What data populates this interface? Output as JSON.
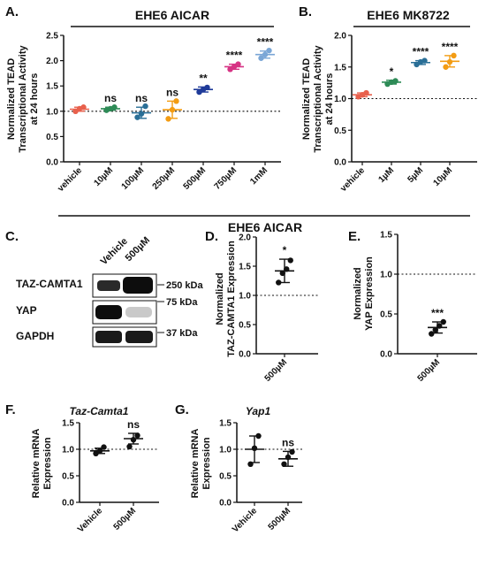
{
  "panels": {
    "A": {
      "letter": "A.",
      "title": "EHE6 AICAR",
      "ylabel": [
        "Normalized TEAD",
        "Transcriptional Activity",
        "at 24 hours"
      ]
    },
    "B": {
      "letter": "B.",
      "title": "EHE6 MK8722",
      "ylabel": [
        "Normalized TEAD",
        "Transcriptional Activity",
        "at 24 hours"
      ]
    },
    "section_title": "EHE6 AICAR",
    "C": {
      "letter": "C.",
      "lanes": [
        "Vehicle",
        "500µM"
      ],
      "rows": [
        "TAZ-CAMTA1",
        "YAP",
        "GAPDH"
      ],
      "markers": [
        "250 kDa",
        "75 kDa",
        "37 kDa"
      ]
    },
    "D": {
      "letter": "D.",
      "ylabel": [
        "Normalized",
        "TAZ-CAMTA1 Expression"
      ]
    },
    "E": {
      "letter": "E.",
      "ylabel": [
        "Normalized",
        "YAP Expression"
      ]
    },
    "F": {
      "letter": "F.",
      "title": "Taz-Camta1",
      "ylabel": [
        "Relative mRNA",
        "Expression"
      ]
    },
    "G": {
      "letter": "G.",
      "title": "Yap1",
      "ylabel": [
        "Relative mRNA",
        "Expression"
      ]
    }
  },
  "chart_data": [
    {
      "id": "A",
      "type": "scatter",
      "title": "EHE6 AICAR",
      "ylim": [
        0,
        2.5
      ],
      "yticks": [
        "0.0",
        "0.5",
        "1.0",
        "1.5",
        "2.0",
        "2.5"
      ],
      "categories": [
        "vehicle",
        "10µM",
        "100µM",
        "250µM",
        "500µM",
        "750µM",
        "1mM"
      ],
      "colors": [
        "#e8604c",
        "#2e8b57",
        "#2a6f97",
        "#f39c12",
        "#1f3b99",
        "#d63384",
        "#7aa6d6"
      ],
      "points": [
        [
          1.0,
          1.05,
          1.08
        ],
        [
          1.02,
          1.05,
          1.08
        ],
        [
          0.88,
          0.95,
          1.1
        ],
        [
          0.85,
          1.03,
          1.2
        ],
        [
          1.38,
          1.43,
          1.47
        ],
        [
          1.83,
          1.88,
          1.93
        ],
        [
          2.05,
          2.12,
          2.2
        ]
      ],
      "means": [
        1.04,
        1.05,
        0.97,
        1.03,
        1.43,
        1.88,
        2.12
      ],
      "sd": [
        0.04,
        0.03,
        0.11,
        0.17,
        0.05,
        0.05,
        0.07
      ],
      "significance": [
        "",
        "ns",
        "ns",
        "ns",
        "**",
        "****",
        "****"
      ],
      "reference_line": 1.0
    },
    {
      "id": "B",
      "type": "scatter",
      "title": "EHE6 MK8722",
      "ylim": [
        0,
        2.0
      ],
      "yticks": [
        "0.0",
        "0.5",
        "1.0",
        "1.5",
        "2.0"
      ],
      "categories": [
        "vehicle",
        "1µM",
        "5µM",
        "10µM"
      ],
      "colors": [
        "#e8604c",
        "#2e8b57",
        "#2a6f97",
        "#f39c12"
      ],
      "points": [
        [
          1.03,
          1.06,
          1.09
        ],
        [
          1.23,
          1.26,
          1.28
        ],
        [
          1.54,
          1.58,
          1.6
        ],
        [
          1.5,
          1.58,
          1.68
        ]
      ],
      "means": [
        1.06,
        1.26,
        1.57,
        1.59
      ],
      "sd": [
        0.03,
        0.03,
        0.03,
        0.09
      ],
      "significance": [
        "",
        "*",
        "****",
        "****"
      ],
      "reference_line": 1.0
    },
    {
      "id": "D",
      "type": "scatter",
      "ylim": [
        0,
        2.0
      ],
      "yticks": [
        "0.0",
        "0.5",
        "1.0",
        "1.5",
        "2.0"
      ],
      "categories": [
        "500µM"
      ],
      "points": [
        [
          1.22,
          1.38,
          1.45,
          1.6
        ]
      ],
      "means": [
        1.42
      ],
      "sd": [
        0.2
      ],
      "significance": [
        "*"
      ],
      "reference_line": 1.0
    },
    {
      "id": "E",
      "type": "scatter",
      "ylim": [
        0,
        1.5
      ],
      "yticks": [
        "0.0",
        "0.5",
        "1.0",
        "1.5"
      ],
      "categories": [
        "500µM"
      ],
      "points": [
        [
          0.25,
          0.3,
          0.35,
          0.4
        ]
      ],
      "means": [
        0.33
      ],
      "sd": [
        0.07
      ],
      "significance": [
        "***"
      ],
      "reference_line": 1.0
    },
    {
      "id": "F",
      "type": "scatter",
      "ylim": [
        0,
        1.5
      ],
      "yticks": [
        "0.0",
        "0.5",
        "1.0",
        "1.5"
      ],
      "categories": [
        "Vehicle",
        "500µM"
      ],
      "points": [
        [
          0.92,
          0.97,
          1.04
        ],
        [
          1.05,
          1.18,
          1.26
        ]
      ],
      "means": [
        0.97,
        1.2
      ],
      "sd": [
        0.05,
        0.1
      ],
      "significance": [
        "",
        "ns"
      ],
      "reference_line": 1.0
    },
    {
      "id": "G",
      "type": "scatter",
      "ylim": [
        0,
        1.5
      ],
      "yticks": [
        "0.0",
        "0.5",
        "1.0",
        "1.5"
      ],
      "categories": [
        "Vehicle",
        "500µM"
      ],
      "points": [
        [
          0.72,
          1.02,
          1.25
        ],
        [
          0.72,
          0.85,
          0.95
        ]
      ],
      "means": [
        1.0,
        0.82
      ],
      "sd": [
        0.25,
        0.14
      ],
      "significance": [
        "",
        "ns"
      ],
      "reference_line": 1.0
    }
  ]
}
